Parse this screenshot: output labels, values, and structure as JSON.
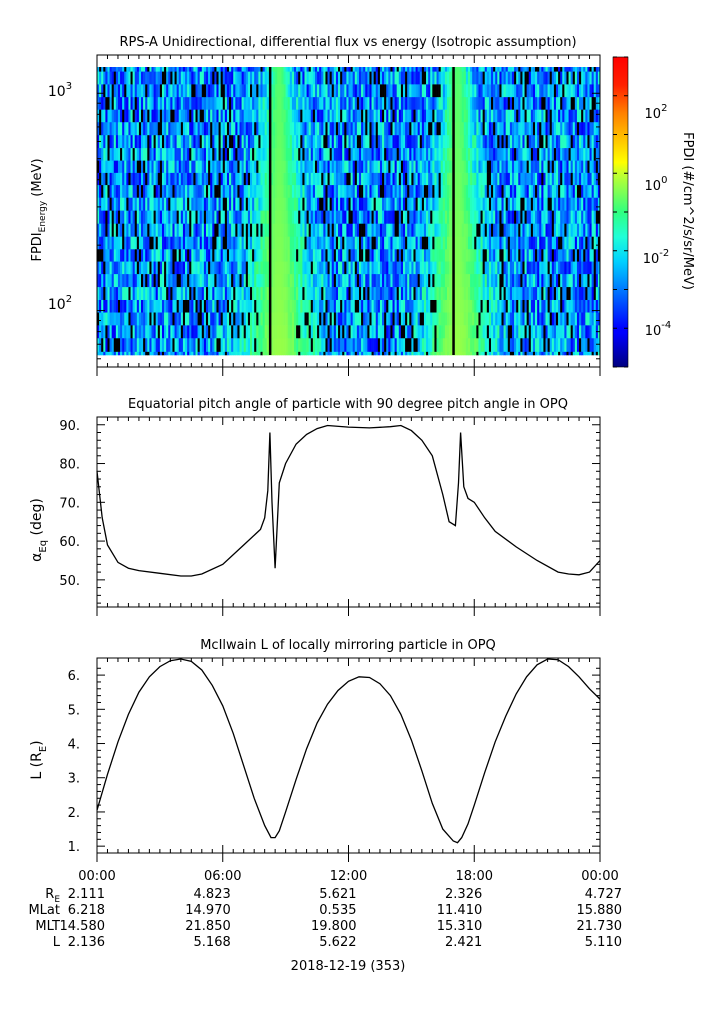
{
  "panel1": {
    "title": "RPS-A Unidirectional, differential flux vs energy (Isotropic assumption)",
    "ylabel_main": "FPDI",
    "ylabel_sub": "Energy",
    "ylabel_unit": " (MeV)",
    "yticks": [
      {
        "label": "10",
        "exp": "3"
      },
      {
        "label": "10",
        "exp": "2"
      }
    ],
    "colorbar_label": "FPDI (#/cm^2/s/sr/MeV)",
    "colorbar_ticks": [
      {
        "label": "10",
        "exp": "2"
      },
      {
        "label": "10",
        "exp": "0"
      },
      {
        "label": "10",
        "exp": "-2"
      },
      {
        "label": "10",
        "exp": "-4"
      }
    ]
  },
  "panel2": {
    "title": "Equatorial pitch angle of particle with 90 degree pitch angle in OPQ",
    "ylabel_alpha": "α",
    "ylabel_sub": "Eq",
    "ylabel_unit": " (deg)",
    "yticks": [
      "90.",
      "80.",
      "70.",
      "60.",
      "50."
    ]
  },
  "panel3": {
    "title": "McIlwain L of locally mirroring particle in OPQ",
    "ylabel_main": "L (R",
    "ylabel_sub": "E",
    "ylabel_end": ")",
    "yticks": [
      "6.",
      "5.",
      "4.",
      "3.",
      "2.",
      "1."
    ]
  },
  "xaxis": {
    "ticks": [
      "00:00",
      "06:00",
      "12:00",
      "18:00",
      "00:00"
    ],
    "row_labels": [
      {
        "main": "R",
        "sub": "E"
      },
      {
        "main": "MLat",
        "sub": ""
      },
      {
        "main": "MLT",
        "sub": ""
      },
      {
        "main": "L",
        "sub": ""
      }
    ],
    "rows": [
      [
        "2.111",
        "4.823",
        "5.621",
        "2.326",
        "4.727"
      ],
      [
        "6.218",
        "14.970",
        "0.535",
        "11.410",
        "15.880"
      ],
      [
        "14.580",
        "21.850",
        "19.800",
        "15.310",
        "21.730"
      ],
      [
        "2.136",
        "5.168",
        "5.622",
        "2.421",
        "5.110"
      ]
    ],
    "date_label": "2018-12-19 (353)"
  },
  "chart_data": [
    {
      "type": "heatmap",
      "title": "RPS-A Unidirectional, differential flux vs energy (Isotropic assumption)",
      "xlabel": "",
      "ylabel": "FPDI Energy (MeV)",
      "x_range_hours": [
        0,
        24
      ],
      "y_scale": "log",
      "ylim_mev": [
        55,
        1500
      ],
      "energy_channels_mev": [
        60,
        70,
        80,
        92,
        105,
        120,
        138,
        158,
        180,
        205,
        235,
        270,
        310,
        355,
        405,
        460,
        525,
        600,
        690,
        790,
        900,
        1030,
        1180,
        1350
      ],
      "color_scale": "log",
      "clim": [
        1e-05,
        1000.0
      ],
      "colorbar_label": "FPDI (#/cm^2/s/sr/MeV)",
      "features": [
        {
          "description": "background flux",
          "hours": [
            0,
            24
          ],
          "log10_flux_range": [
            -4.5,
            -1.5
          ]
        },
        {
          "description": "enhanced flux (radiation belt pass)",
          "hour_center": 8.7,
          "peak_log10_flux": -0.3
        },
        {
          "description": "enhanced flux (radiation belt pass)",
          "hour_center": 17.2,
          "peak_log10_flux": -0.3
        },
        {
          "description": "data gaps",
          "hours": [
            8.25,
            17.0,
            6.2
          ],
          "color": "#000000"
        }
      ]
    },
    {
      "type": "line",
      "title": "Equatorial pitch angle of particle with 90 degree pitch angle in OPQ",
      "xlabel": "",
      "ylabel": "αEq (deg)",
      "ylim": [
        43,
        92
      ],
      "series": [
        {
          "x": [
            0,
            0.25,
            0.5,
            1,
            1.5,
            2,
            3,
            4,
            4.5,
            5,
            6,
            7,
            7.8,
            8,
            8.15,
            8.25,
            8.35,
            8.5,
            8.7,
            9,
            9.5,
            10,
            10.5,
            11,
            12,
            13,
            14,
            14.5,
            15,
            15.5,
            16,
            16.5,
            16.8,
            17.1,
            17.25,
            17.35,
            17.5,
            17.7,
            18,
            18.5,
            19,
            20,
            21,
            22,
            22.5,
            23,
            23.5,
            24
          ],
          "y": [
            78,
            66,
            59,
            54.5,
            53,
            52.4,
            51.7,
            51,
            51,
            51.5,
            54,
            59,
            63,
            66,
            73,
            88,
            70,
            53,
            75,
            80,
            85,
            87.5,
            89,
            89.8,
            89.4,
            89.2,
            89.5,
            89.8,
            88.5,
            86,
            82,
            72,
            65,
            64,
            75,
            88,
            74,
            71,
            70,
            66,
            62.5,
            58.5,
            55,
            52,
            51.5,
            51.3,
            52,
            55
          ]
        }
      ]
    },
    {
      "type": "line",
      "title": "McIlwain L of locally mirroring particle in OPQ",
      "xlabel": "",
      "ylabel": "L (RE)",
      "ylim": [
        0.8,
        6.5
      ],
      "series": [
        {
          "x": [
            0,
            0.5,
            1,
            1.5,
            2,
            2.5,
            3,
            3.5,
            4,
            4.5,
            5,
            5.5,
            6,
            6.5,
            7,
            7.5,
            8,
            8.3,
            8.5,
            8.7,
            9,
            9.5,
            10,
            10.5,
            11,
            11.5,
            12,
            12.5,
            13,
            13.5,
            14,
            14.5,
            15,
            15.5,
            16,
            16.5,
            17,
            17.2,
            17.4,
            17.7,
            18,
            18.5,
            19,
            19.5,
            20,
            20.5,
            21,
            21.5,
            22,
            22.5,
            23,
            23.5,
            24
          ],
          "y": [
            2.05,
            3.1,
            4.05,
            4.85,
            5.5,
            5.95,
            6.25,
            6.42,
            6.47,
            6.4,
            6.15,
            5.7,
            5.1,
            4.3,
            3.35,
            2.4,
            1.6,
            1.25,
            1.25,
            1.45,
            2.0,
            2.95,
            3.85,
            4.6,
            5.15,
            5.55,
            5.82,
            5.95,
            5.93,
            5.75,
            5.4,
            4.85,
            4.1,
            3.2,
            2.25,
            1.5,
            1.15,
            1.1,
            1.25,
            1.65,
            2.2,
            3.15,
            4.05,
            4.8,
            5.45,
            5.95,
            6.3,
            6.47,
            6.45,
            6.25,
            5.95,
            5.6,
            5.3
          ]
        }
      ]
    }
  ]
}
